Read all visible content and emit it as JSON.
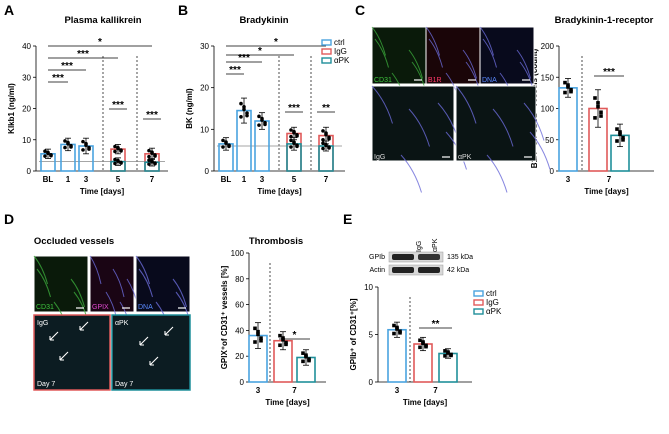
{
  "colors": {
    "ctrl": "#4aa3df",
    "igg": "#e05a5a",
    "apk": "#1f8f9a",
    "pk_bar": "#1f8f9a",
    "bk_bar": "#1f8f9a"
  },
  "legend_labels": [
    "ctrl",
    "IgG",
    "αPK"
  ],
  "panels": {
    "A": {
      "letter": "A",
      "title": "Plasma kallikrein",
      "ylabel": "Klkb1 (ng/ml)",
      "xlabel": "Time [days]"
    },
    "B": {
      "letter": "B",
      "title": "Bradykinin",
      "ylabel": "BK (ng/ml)",
      "xlabel": "Time [days]"
    },
    "C": {
      "letter": "C",
      "title": "Bradykinin-1-receptor",
      "ylabel": "B1R⁺ on CD31⁺ vessels (count)",
      "xlabel": "Time [days]",
      "micro_labels": [
        "CD31",
        "B1R",
        "DNA",
        "IgG",
        "αPK"
      ]
    },
    "D": {
      "letter": "D",
      "title": "Occluded vessels",
      "title2": "Thrombosis",
      "ylabel": "GPIX⁺of CD31⁺ vessels [%]",
      "xlabel": "Time [days]",
      "micro_labels": [
        "CD31",
        "GPIX",
        "DNA",
        "IgG",
        "αPK",
        "Day 7",
        "Day 7"
      ]
    },
    "E": {
      "letter": "E",
      "ylabel": "GPIb⁺ of CD31⁺[%]",
      "xlabel": "Time [days]",
      "blot_cols": [
        "IgG",
        "αPK"
      ],
      "blot_rows": [
        "GPIb",
        "Actin"
      ],
      "blot_sizes": [
        "135 kDa",
        "42 kDa"
      ]
    }
  },
  "chart_data": [
    {
      "id": "A",
      "type": "bar",
      "title": "Plasma kallikrein",
      "ylabel": "Klkb1 (ng/ml)",
      "xlabel": "Time [days]",
      "ylim": [
        0,
        40
      ],
      "yticks": [
        0,
        10,
        20,
        30,
        40
      ],
      "categories": [
        "BL",
        "1",
        "3",
        "5",
        "7"
      ],
      "baseline": 3,
      "series": [
        {
          "name": "ctrl",
          "x": [
            "BL",
            "1",
            "3"
          ],
          "values": [
            5.5,
            8.5,
            8.0
          ],
          "err": [
            1.5,
            2.0,
            2.5
          ]
        },
        {
          "name": "IgG",
          "x": [
            "5",
            "7"
          ],
          "values": [
            7.0,
            5.5
          ],
          "err": [
            1.5,
            1.8
          ]
        },
        {
          "name": "αPK",
          "x": [
            "5",
            "7"
          ],
          "values": [
            3.0,
            2.8
          ],
          "err": [
            1.2,
            1.2
          ]
        }
      ],
      "significance": [
        "***",
        "***",
        "***",
        "*",
        "***",
        "***"
      ]
    },
    {
      "id": "B",
      "type": "bar",
      "title": "Bradykinin",
      "ylabel": "BK (ng/ml)",
      "xlabel": "Time [days]",
      "ylim": [
        0,
        30
      ],
      "yticks": [
        0,
        10,
        20,
        30
      ],
      "categories": [
        "BL",
        "1",
        "3",
        "5",
        "7"
      ],
      "baseline": 6,
      "series": [
        {
          "name": "ctrl",
          "x": [
            "BL",
            "1",
            "3"
          ],
          "values": [
            6.5,
            14.5,
            12.0
          ],
          "err": [
            1.5,
            3.0,
            2.0
          ]
        },
        {
          "name": "IgG",
          "x": [
            "5",
            "7"
          ],
          "values": [
            9.0,
            8.5
          ],
          "err": [
            1.5,
            2.0
          ]
        },
        {
          "name": "αPK",
          "x": [
            "5",
            "7"
          ],
          "values": [
            6.5,
            6.0
          ],
          "err": [
            1.5,
            1.2
          ]
        }
      ],
      "significance": [
        "***",
        "***",
        "*",
        "*",
        "***",
        "**"
      ]
    },
    {
      "id": "C",
      "type": "bar",
      "ylabel": "B1R⁺ on CD31⁺ vessels (count)",
      "xlabel": "Time [days]",
      "ylim": [
        0,
        200
      ],
      "yticks": [
        0,
        50,
        100,
        150,
        200
      ],
      "categories": [
        "3",
        "7",
        "7"
      ],
      "series": [
        {
          "name": "ctrl",
          "x": [
            "3"
          ],
          "values": [
            133
          ],
          "err": [
            15
          ]
        },
        {
          "name": "IgG",
          "x": [
            "7"
          ],
          "values": [
            100
          ],
          "err": [
            30
          ]
        },
        {
          "name": "αPK",
          "x": [
            "7"
          ],
          "values": [
            57
          ],
          "err": [
            18
          ]
        }
      ],
      "significance": [
        "***"
      ]
    },
    {
      "id": "D",
      "type": "bar",
      "title": "Thrombosis",
      "ylabel": "GPIX⁺of CD31⁺ vessels [%]",
      "xlabel": "Time [days]",
      "ylim": [
        0,
        100
      ],
      "yticks": [
        0,
        20,
        40,
        60,
        80,
        100
      ],
      "categories": [
        "3",
        "7",
        "7"
      ],
      "series": [
        {
          "name": "ctrl",
          "x": [
            "3"
          ],
          "values": [
            36
          ],
          "err": [
            10
          ]
        },
        {
          "name": "IgG",
          "x": [
            "7"
          ],
          "values": [
            32
          ],
          "err": [
            7
          ]
        },
        {
          "name": "αPK",
          "x": [
            "7"
          ],
          "values": [
            19
          ],
          "err": [
            6
          ]
        }
      ],
      "significance": [
        "*"
      ]
    },
    {
      "id": "E",
      "type": "bar",
      "ylabel": "GPIb⁺ of CD31⁺[%]",
      "xlabel": "Time [days]",
      "ylim": [
        0,
        10
      ],
      "yticks": [
        0,
        5,
        10
      ],
      "categories": [
        "3",
        "7",
        "7"
      ],
      "series": [
        {
          "name": "ctrl",
          "x": [
            "3"
          ],
          "values": [
            5.5
          ],
          "err": [
            0.8
          ]
        },
        {
          "name": "IgG",
          "x": [
            "7"
          ],
          "values": [
            4.0
          ],
          "err": [
            0.7
          ]
        },
        {
          "name": "αPK",
          "x": [
            "7"
          ],
          "values": [
            3.0
          ],
          "err": [
            0.5
          ]
        }
      ],
      "significance": [
        "**"
      ]
    }
  ]
}
